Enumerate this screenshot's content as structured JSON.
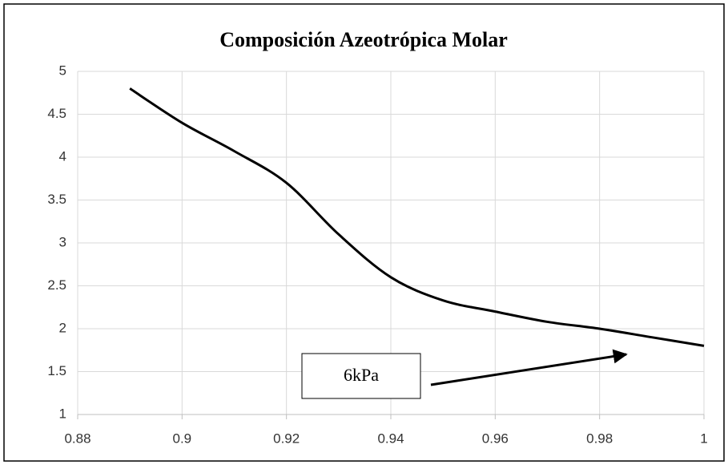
{
  "chart_data": {
    "type": "line",
    "title": "Composición Azeotrópica Molar",
    "x": [
      0.89,
      0.9,
      0.91,
      0.92,
      0.93,
      0.94,
      0.95,
      0.96,
      0.97,
      0.98,
      0.99,
      1.0
    ],
    "series": [
      {
        "color": "#000000",
        "values": [
          4.8,
          4.4,
          4.07,
          3.7,
          3.1,
          2.6,
          2.33,
          2.2,
          2.08,
          2.0,
          1.9,
          1.8
        ]
      }
    ],
    "xlim": [
      0.88,
      1
    ],
    "xticks": [
      0.88,
      0.9,
      0.92,
      0.94,
      0.96,
      0.98,
      1
    ],
    "ylim": [
      1,
      5
    ],
    "yticks": [
      1,
      1.5,
      2,
      2.5,
      3,
      3.5,
      4,
      4.5,
      5
    ],
    "grid": true,
    "annotation": "6kPa"
  }
}
